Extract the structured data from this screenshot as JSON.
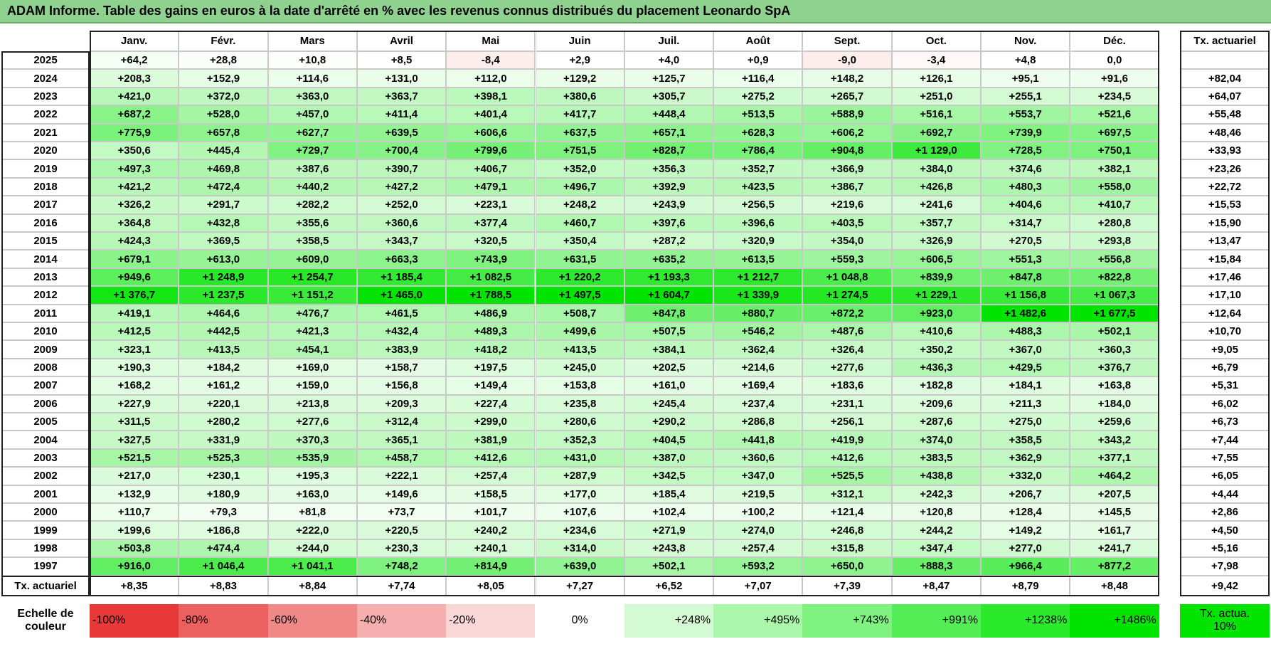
{
  "title": "ADAM Informe. Table des gains en euros à la date d'arrêté en % avec les revenus connus distribués du placement Leonardo SpA",
  "table": {
    "columns": [
      "Janv.",
      "Févr.",
      "Mars",
      "Avril",
      "Mai",
      "Juin",
      "Juil.",
      "Août",
      "Sept.",
      "Oct.",
      "Nov.",
      "Déc."
    ],
    "rate_header": "Tx. actuariel",
    "rows": [
      {
        "year": "2025",
        "cells": [
          "+64,2",
          "+28,8",
          "+10,8",
          "+8,5",
          "-8,4",
          "+2,9",
          "+4,0",
          "+0,9",
          "-9,0",
          "-3,4",
          "+4,8",
          "0,0"
        ]
      },
      {
        "year": "2024",
        "cells": [
          "+208,3",
          "+152,9",
          "+114,6",
          "+131,0",
          "+112,0",
          "+129,2",
          "+125,7",
          "+116,4",
          "+148,2",
          "+126,1",
          "+95,1",
          "+91,6"
        ],
        "rate": "+82,04"
      },
      {
        "year": "2023",
        "cells": [
          "+421,0",
          "+372,0",
          "+363,0",
          "+363,7",
          "+398,1",
          "+380,6",
          "+305,7",
          "+275,2",
          "+265,7",
          "+251,0",
          "+255,1",
          "+234,5"
        ],
        "rate": "+64,07"
      },
      {
        "year": "2022",
        "cells": [
          "+687,2",
          "+528,0",
          "+457,0",
          "+411,4",
          "+401,4",
          "+417,7",
          "+448,4",
          "+513,5",
          "+588,9",
          "+516,1",
          "+553,7",
          "+521,6"
        ],
        "rate": "+55,48"
      },
      {
        "year": "2021",
        "cells": [
          "+775,9",
          "+657,8",
          "+627,7",
          "+639,5",
          "+606,6",
          "+637,5",
          "+657,1",
          "+628,3",
          "+606,2",
          "+692,7",
          "+739,9",
          "+697,5"
        ],
        "rate": "+48,46"
      },
      {
        "year": "2020",
        "cells": [
          "+350,6",
          "+445,4",
          "+729,7",
          "+700,4",
          "+799,6",
          "+751,5",
          "+828,7",
          "+786,4",
          "+904,8",
          "+1 129,0",
          "+728,5",
          "+750,1"
        ],
        "rate": "+33,93"
      },
      {
        "year": "2019",
        "cells": [
          "+497,3",
          "+469,8",
          "+387,6",
          "+390,7",
          "+406,7",
          "+352,0",
          "+356,3",
          "+352,7",
          "+366,9",
          "+384,0",
          "+374,6",
          "+382,1"
        ],
        "rate": "+23,26"
      },
      {
        "year": "2018",
        "cells": [
          "+421,2",
          "+472,4",
          "+440,2",
          "+427,2",
          "+479,1",
          "+496,7",
          "+392,9",
          "+423,5",
          "+386,7",
          "+426,8",
          "+480,3",
          "+558,0"
        ],
        "rate": "+22,72"
      },
      {
        "year": "2017",
        "cells": [
          "+326,2",
          "+291,7",
          "+282,2",
          "+252,0",
          "+223,1",
          "+248,2",
          "+243,9",
          "+256,5",
          "+219,6",
          "+241,6",
          "+404,6",
          "+410,7"
        ],
        "rate": "+15,53"
      },
      {
        "year": "2016",
        "cells": [
          "+364,8",
          "+432,8",
          "+355,6",
          "+360,6",
          "+377,4",
          "+460,7",
          "+397,6",
          "+396,6",
          "+403,5",
          "+357,7",
          "+314,7",
          "+280,8"
        ],
        "rate": "+15,90"
      },
      {
        "year": "2015",
        "cells": [
          "+424,3",
          "+369,5",
          "+358,5",
          "+343,7",
          "+320,5",
          "+350,4",
          "+287,2",
          "+320,9",
          "+354,0",
          "+326,9",
          "+270,5",
          "+293,8"
        ],
        "rate": "+13,47"
      },
      {
        "year": "2014",
        "cells": [
          "+679,1",
          "+613,0",
          "+609,0",
          "+663,3",
          "+743,9",
          "+631,5",
          "+635,2",
          "+613,5",
          "+559,3",
          "+606,5",
          "+551,3",
          "+556,8"
        ],
        "rate": "+15,84"
      },
      {
        "year": "2013",
        "cells": [
          "+949,6",
          "+1 248,9",
          "+1 254,7",
          "+1 185,4",
          "+1 082,5",
          "+1 220,2",
          "+1 193,3",
          "+1 212,7",
          "+1 048,8",
          "+839,9",
          "+847,8",
          "+822,8"
        ],
        "rate": "+17,46"
      },
      {
        "year": "2012",
        "cells": [
          "+1 376,7",
          "+1 237,5",
          "+1 151,2",
          "+1 465,0",
          "+1 788,5",
          "+1 497,5",
          "+1 604,7",
          "+1 339,9",
          "+1 274,5",
          "+1 229,1",
          "+1 156,8",
          "+1 067,3"
        ],
        "rate": "+17,10"
      },
      {
        "year": "2011",
        "cells": [
          "+419,1",
          "+464,6",
          "+476,7",
          "+461,5",
          "+486,9",
          "+508,7",
          "+847,8",
          "+880,7",
          "+872,2",
          "+923,0",
          "+1 482,6",
          "+1 677,5"
        ],
        "rate": "+12,64"
      },
      {
        "year": "2010",
        "cells": [
          "+412,5",
          "+442,5",
          "+421,3",
          "+432,4",
          "+489,3",
          "+499,6",
          "+507,5",
          "+546,2",
          "+487,6",
          "+410,6",
          "+488,3",
          "+502,1"
        ],
        "rate": "+10,70"
      },
      {
        "year": "2009",
        "cells": [
          "+323,1",
          "+413,5",
          "+454,1",
          "+383,9",
          "+418,2",
          "+413,5",
          "+384,1",
          "+362,4",
          "+326,4",
          "+350,2",
          "+367,0",
          "+360,3"
        ],
        "rate": "+9,05"
      },
      {
        "year": "2008",
        "cells": [
          "+190,3",
          "+184,2",
          "+169,0",
          "+158,7",
          "+197,5",
          "+245,0",
          "+202,5",
          "+214,6",
          "+277,6",
          "+436,3",
          "+429,5",
          "+376,7"
        ],
        "rate": "+6,79"
      },
      {
        "year": "2007",
        "cells": [
          "+168,2",
          "+161,2",
          "+159,0",
          "+156,8",
          "+149,4",
          "+153,8",
          "+161,0",
          "+169,4",
          "+183,6",
          "+182,8",
          "+184,1",
          "+163,8"
        ],
        "rate": "+5,31"
      },
      {
        "year": "2006",
        "cells": [
          "+227,9",
          "+220,1",
          "+213,8",
          "+209,3",
          "+227,4",
          "+235,8",
          "+245,4",
          "+237,4",
          "+231,1",
          "+209,6",
          "+211,3",
          "+184,0"
        ],
        "rate": "+6,02"
      },
      {
        "year": "2005",
        "cells": [
          "+311,5",
          "+280,2",
          "+277,6",
          "+312,4",
          "+299,0",
          "+280,6",
          "+290,2",
          "+286,8",
          "+256,1",
          "+287,6",
          "+275,0",
          "+259,6"
        ],
        "rate": "+6,73"
      },
      {
        "year": "2004",
        "cells": [
          "+327,5",
          "+331,9",
          "+370,3",
          "+365,1",
          "+381,9",
          "+352,3",
          "+404,5",
          "+441,8",
          "+419,9",
          "+374,0",
          "+358,5",
          "+343,2"
        ],
        "rate": "+7,44"
      },
      {
        "year": "2003",
        "cells": [
          "+521,5",
          "+525,3",
          "+535,9",
          "+458,7",
          "+412,6",
          "+431,0",
          "+387,0",
          "+360,6",
          "+412,6",
          "+383,5",
          "+362,9",
          "+377,1"
        ],
        "rate": "+7,55"
      },
      {
        "year": "2002",
        "cells": [
          "+217,0",
          "+230,1",
          "+195,3",
          "+222,1",
          "+257,4",
          "+287,9",
          "+342,5",
          "+347,0",
          "+525,5",
          "+438,8",
          "+332,0",
          "+464,2"
        ],
        "rate": "+6,05"
      },
      {
        "year": "2001",
        "cells": [
          "+132,9",
          "+180,9",
          "+163,0",
          "+149,6",
          "+158,5",
          "+177,0",
          "+185,4",
          "+219,5",
          "+312,1",
          "+242,3",
          "+206,7",
          "+207,5"
        ],
        "rate": "+4,44"
      },
      {
        "year": "2000",
        "cells": [
          "+110,7",
          "+79,3",
          "+81,8",
          "+73,7",
          "+101,7",
          "+107,6",
          "+102,4",
          "+100,2",
          "+121,4",
          "+120,8",
          "+128,4",
          "+145,5"
        ],
        "rate": "+2,86"
      },
      {
        "year": "1999",
        "cells": [
          "+199,6",
          "+186,8",
          "+222,0",
          "+220,5",
          "+240,2",
          "+234,6",
          "+271,9",
          "+274,0",
          "+246,8",
          "+244,2",
          "+149,2",
          "+161,7"
        ],
        "rate": "+4,50"
      },
      {
        "year": "1998",
        "cells": [
          "+503,8",
          "+474,4",
          "+244,0",
          "+230,3",
          "+240,1",
          "+314,0",
          "+243,8",
          "+257,4",
          "+315,8",
          "+347,4",
          "+277,0",
          "+241,7"
        ],
        "rate": "+5,16"
      },
      {
        "year": "1997",
        "cells": [
          "+916,0",
          "+1 046,4",
          "+1 041,1",
          "+748,2",
          "+814,9",
          "+639,0",
          "+502,1",
          "+593,2",
          "+650,0",
          "+888,3",
          "+966,4",
          "+877,2"
        ],
        "rate": "+7,98"
      }
    ],
    "footer": {
      "label": "Tx. actuariel",
      "cells": [
        "+8,35",
        "+8,83",
        "+8,84",
        "+7,74",
        "+8,05",
        "+7,27",
        "+6,52",
        "+7,07",
        "+7,39",
        "+8,47",
        "+8,79",
        "+8,48"
      ],
      "total": "+9,42"
    }
  },
  "scale": {
    "label": "Echelle de couleur",
    "steps": [
      "-100%",
      "-80%",
      "-60%",
      "-40%",
      "-20%",
      "0%",
      "+248%",
      "+495%",
      "+743%",
      "+991%",
      "+1238%",
      "+1486%"
    ],
    "rate_label": "Tx. actua. 10%"
  }
}
